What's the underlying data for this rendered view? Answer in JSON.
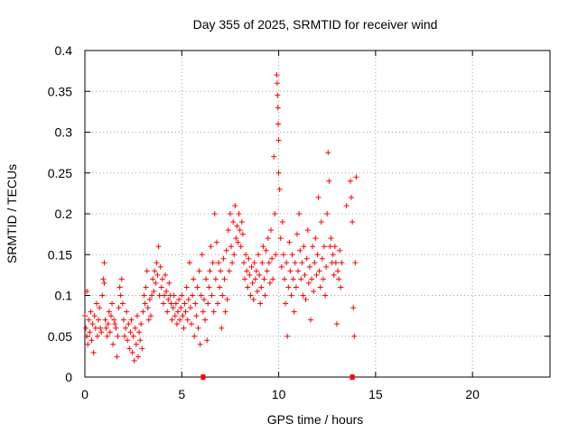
{
  "chart_data": {
    "type": "scatter",
    "title": "Day 355 of 2025, SRMTID for receiver wind",
    "xlabel": "GPS time / hours",
    "ylabel": "SRMTID / TECUs",
    "xlim": [
      0,
      24
    ],
    "ylim": [
      0,
      0.4
    ],
    "xticks": [
      0,
      5,
      10,
      15,
      20
    ],
    "xtick_labels": [
      "0",
      "5",
      "10",
      "15",
      "20"
    ],
    "yticks": [
      0,
      0.05,
      0.1,
      0.15,
      0.2,
      0.25,
      0.3,
      0.35,
      0.4
    ],
    "ytick_labels": [
      "0",
      "0.05",
      "0.1",
      "0.15",
      "0.2",
      "0.25",
      "0.3",
      "0.35",
      "0.4"
    ],
    "grid": true,
    "marker": "plus",
    "series_color": "#ff0000",
    "zero_markers_x": [
      6.1,
      13.8
    ],
    "series": [
      {
        "name": "SRMTID",
        "points": [
          [
            0.0,
            0.075
          ],
          [
            0.05,
            0.06
          ],
          [
            0.1,
            0.105
          ],
          [
            0.1,
            0.05
          ],
          [
            0.15,
            0.04
          ],
          [
            0.2,
            0.07
          ],
          [
            0.25,
            0.055
          ],
          [
            0.3,
            0.08
          ],
          [
            0.35,
            0.045
          ],
          [
            0.4,
            0.065
          ],
          [
            0.45,
            0.03
          ],
          [
            0.5,
            0.075
          ],
          [
            0.55,
            0.06
          ],
          [
            0.6,
            0.09
          ],
          [
            0.65,
            0.05
          ],
          [
            0.7,
            0.07
          ],
          [
            0.75,
            0.085
          ],
          [
            0.8,
            0.06
          ],
          [
            0.85,
            0.055
          ],
          [
            0.9,
            0.1
          ],
          [
            0.95,
            0.12
          ],
          [
            1.0,
            0.14
          ],
          [
            1.0,
            0.115
          ],
          [
            1.05,
            0.07
          ],
          [
            1.1,
            0.06
          ],
          [
            1.15,
            0.05
          ],
          [
            1.2,
            0.065
          ],
          [
            1.25,
            0.08
          ],
          [
            1.3,
            0.055
          ],
          [
            1.35,
            0.075
          ],
          [
            1.4,
            0.09
          ],
          [
            1.45,
            0.04
          ],
          [
            1.5,
            0.07
          ],
          [
            1.55,
            0.065
          ],
          [
            1.6,
            0.06
          ],
          [
            1.65,
            0.025
          ],
          [
            1.7,
            0.05
          ],
          [
            1.75,
            0.085
          ],
          [
            1.8,
            0.11
          ],
          [
            1.85,
            0.1
          ],
          [
            1.9,
            0.12
          ],
          [
            1.95,
            0.09
          ],
          [
            2.0,
            0.07
          ],
          [
            2.05,
            0.05
          ],
          [
            2.1,
            0.06
          ],
          [
            2.15,
            0.08
          ],
          [
            2.2,
            0.045
          ],
          [
            2.25,
            0.065
          ],
          [
            2.3,
            0.035
          ],
          [
            2.35,
            0.055
          ],
          [
            2.4,
            0.07
          ],
          [
            2.45,
            0.03
          ],
          [
            2.5,
            0.05
          ],
          [
            2.55,
            0.02
          ],
          [
            2.6,
            0.06
          ],
          [
            2.65,
            0.04
          ],
          [
            2.7,
            0.075
          ],
          [
            2.75,
            0.025
          ],
          [
            2.8,
            0.055
          ],
          [
            2.85,
            0.045
          ],
          [
            2.9,
            0.065
          ],
          [
            2.95,
            0.035
          ],
          [
            3.0,
            0.08
          ],
          [
            3.05,
            0.1
          ],
          [
            3.1,
            0.09
          ],
          [
            3.15,
            0.11
          ],
          [
            3.2,
            0.13
          ],
          [
            3.25,
            0.085
          ],
          [
            3.3,
            0.07
          ],
          [
            3.35,
            0.095
          ],
          [
            3.4,
            0.075
          ],
          [
            3.45,
            0.1
          ],
          [
            3.5,
            0.12
          ],
          [
            3.55,
            0.105
          ],
          [
            3.6,
            0.13
          ],
          [
            3.65,
            0.115
          ],
          [
            3.7,
            0.14
          ],
          [
            3.75,
            0.125
          ],
          [
            3.8,
            0.16
          ],
          [
            3.85,
            0.1
          ],
          [
            3.9,
            0.135
          ],
          [
            3.95,
            0.11
          ],
          [
            4.0,
            0.12
          ],
          [
            4.05,
            0.09
          ],
          [
            4.1,
            0.1
          ],
          [
            4.15,
            0.125
          ],
          [
            4.2,
            0.105
          ],
          [
            4.25,
            0.08
          ],
          [
            4.3,
            0.095
          ],
          [
            4.35,
            0.115
          ],
          [
            4.4,
            0.1
          ],
          [
            4.45,
            0.09
          ],
          [
            4.5,
            0.07
          ],
          [
            4.55,
            0.085
          ],
          [
            4.6,
            0.1
          ],
          [
            4.65,
            0.075
          ],
          [
            4.7,
            0.09
          ],
          [
            4.75,
            0.065
          ],
          [
            4.8,
            0.08
          ],
          [
            4.85,
            0.095
          ],
          [
            4.9,
            0.07
          ],
          [
            4.95,
            0.085
          ],
          [
            5.0,
            0.1
          ],
          [
            5.05,
            0.075
          ],
          [
            5.1,
            0.06
          ],
          [
            5.15,
            0.09
          ],
          [
            5.2,
            0.08
          ],
          [
            5.25,
            0.11
          ],
          [
            5.3,
            0.07
          ],
          [
            5.35,
            0.095
          ],
          [
            5.4,
            0.14
          ],
          [
            5.45,
            0.085
          ],
          [
            5.5,
            0.065
          ],
          [
            5.55,
            0.1
          ],
          [
            5.6,
            0.12
          ],
          [
            5.65,
            0.05
          ],
          [
            5.7,
            0.09
          ],
          [
            5.75,
            0.075
          ],
          [
            5.8,
            0.11
          ],
          [
            5.85,
            0.06
          ],
          [
            5.9,
            0.13
          ],
          [
            5.95,
            0.04
          ],
          [
            6.0,
            0.1
          ],
          [
            6.05,
            0.15
          ],
          [
            6.1,
            0.08
          ],
          [
            6.15,
            0.095
          ],
          [
            6.2,
            0.07
          ],
          [
            6.25,
            0.12
          ],
          [
            6.3,
            0.045
          ],
          [
            6.35,
            0.09
          ],
          [
            6.4,
            0.11
          ],
          [
            6.45,
            0.13
          ],
          [
            6.5,
            0.16
          ],
          [
            6.55,
            0.1
          ],
          [
            6.6,
            0.14
          ],
          [
            6.65,
            0.08
          ],
          [
            6.7,
            0.2
          ],
          [
            6.75,
            0.12
          ],
          [
            6.8,
            0.165
          ],
          [
            6.85,
            0.09
          ],
          [
            6.9,
            0.14
          ],
          [
            6.95,
            0.11
          ],
          [
            7.0,
            0.13
          ],
          [
            7.05,
            0.06
          ],
          [
            7.1,
            0.1
          ],
          [
            7.15,
            0.145
          ],
          [
            7.2,
            0.12
          ],
          [
            7.25,
            0.08
          ],
          [
            7.3,
            0.155
          ],
          [
            7.35,
            0.095
          ],
          [
            7.4,
            0.18
          ],
          [
            7.45,
            0.13
          ],
          [
            7.5,
            0.2
          ],
          [
            7.55,
            0.16
          ],
          [
            7.6,
            0.14
          ],
          [
            7.65,
            0.19
          ],
          [
            7.7,
            0.15
          ],
          [
            7.75,
            0.21
          ],
          [
            7.8,
            0.17
          ],
          [
            7.85,
            0.185
          ],
          [
            7.9,
            0.165
          ],
          [
            7.95,
            0.2
          ],
          [
            8.0,
            0.18
          ],
          [
            8.05,
            0.16
          ],
          [
            8.1,
            0.19
          ],
          [
            8.15,
            0.175
          ],
          [
            8.2,
            0.14
          ],
          [
            8.25,
            0.12
          ],
          [
            8.3,
            0.15
          ],
          [
            8.35,
            0.13
          ],
          [
            8.4,
            0.11
          ],
          [
            8.45,
            0.145
          ],
          [
            8.5,
            0.125
          ],
          [
            8.55,
            0.1
          ],
          [
            8.6,
            0.135
          ],
          [
            8.65,
            0.115
          ],
          [
            8.7,
            0.095
          ],
          [
            8.75,
            0.14
          ],
          [
            8.8,
            0.12
          ],
          [
            8.85,
            0.13
          ],
          [
            8.9,
            0.105
          ],
          [
            8.95,
            0.15
          ],
          [
            9.0,
            0.125
          ],
          [
            9.05,
            0.09
          ],
          [
            9.1,
            0.11
          ],
          [
            9.15,
            0.14
          ],
          [
            9.2,
            0.16
          ],
          [
            9.25,
            0.12
          ],
          [
            9.3,
            0.1
          ],
          [
            9.35,
            0.155
          ],
          [
            9.4,
            0.13
          ],
          [
            9.45,
            0.17
          ],
          [
            9.5,
            0.14
          ],
          [
            9.55,
            0.115
          ],
          [
            9.6,
            0.18
          ],
          [
            9.65,
            0.145
          ],
          [
            9.7,
            0.12
          ],
          [
            9.75,
            0.27
          ],
          [
            9.8,
            0.2
          ],
          [
            9.85,
            0.15
          ],
          [
            9.9,
            0.37
          ],
          [
            9.92,
            0.36
          ],
          [
            9.94,
            0.345
          ],
          [
            9.96,
            0.33
          ],
          [
            9.98,
            0.31
          ],
          [
            10.0,
            0.29
          ],
          [
            10.0,
            0.25
          ],
          [
            10.05,
            0.23
          ],
          [
            10.1,
            0.17
          ],
          [
            10.15,
            0.135
          ],
          [
            10.2,
            0.19
          ],
          [
            10.25,
            0.15
          ],
          [
            10.3,
            0.12
          ],
          [
            10.35,
            0.09
          ],
          [
            10.4,
            0.14
          ],
          [
            10.45,
            0.05
          ],
          [
            10.5,
            0.11
          ],
          [
            10.55,
            0.165
          ],
          [
            10.6,
            0.13
          ],
          [
            10.65,
            0.1
          ],
          [
            10.7,
            0.15
          ],
          [
            10.75,
            0.12
          ],
          [
            10.8,
            0.08
          ],
          [
            10.85,
            0.14
          ],
          [
            10.9,
            0.11
          ],
          [
            10.95,
            0.175
          ],
          [
            11.0,
            0.13
          ],
          [
            11.05,
            0.2
          ],
          [
            11.1,
            0.155
          ],
          [
            11.15,
            0.12
          ],
          [
            11.2,
            0.14
          ],
          [
            11.25,
            0.1
          ],
          [
            11.3,
            0.16
          ],
          [
            11.35,
            0.125
          ],
          [
            11.4,
            0.095
          ],
          [
            11.45,
            0.145
          ],
          [
            11.5,
            0.18
          ],
          [
            11.55,
            0.115
          ],
          [
            11.6,
            0.135
          ],
          [
            11.65,
            0.07
          ],
          [
            11.7,
            0.12
          ],
          [
            11.75,
            0.16
          ],
          [
            11.8,
            0.105
          ],
          [
            11.85,
            0.14
          ],
          [
            11.9,
            0.17
          ],
          [
            11.95,
            0.125
          ],
          [
            12.0,
            0.15
          ],
          [
            12.05,
            0.22
          ],
          [
            12.1,
            0.13
          ],
          [
            12.15,
            0.11
          ],
          [
            12.2,
            0.19
          ],
          [
            12.25,
            0.145
          ],
          [
            12.3,
            0.12
          ],
          [
            12.35,
            0.16
          ],
          [
            12.4,
            0.1
          ],
          [
            12.45,
            0.135
          ],
          [
            12.5,
            0.2
          ],
          [
            12.55,
            0.275
          ],
          [
            12.6,
            0.24
          ],
          [
            12.65,
            0.16
          ],
          [
            12.7,
            0.17
          ],
          [
            12.75,
            0.14
          ],
          [
            12.8,
            0.15
          ],
          [
            12.85,
            0.125
          ],
          [
            12.9,
            0.16
          ],
          [
            12.95,
            0.14
          ],
          [
            13.0,
            0.065
          ],
          [
            13.05,
            0.13
          ],
          [
            13.1,
            0.12
          ],
          [
            13.15,
            0.155
          ],
          [
            13.2,
            0.11
          ],
          [
            13.25,
            0.14
          ],
          [
            13.5,
            0.21
          ],
          [
            13.7,
            0.24
          ],
          [
            13.75,
            0.22
          ],
          [
            13.8,
            0.19
          ],
          [
            13.85,
            0.085
          ],
          [
            13.9,
            0.05
          ],
          [
            13.95,
            0.14
          ],
          [
            14.0,
            0.245
          ]
        ]
      }
    ]
  }
}
